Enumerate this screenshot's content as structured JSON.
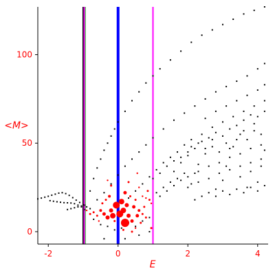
{
  "chart_data": {
    "type": "scatter",
    "xlabel": "E",
    "ylabel": "<M>",
    "xlim": [
      -2.3,
      4.3
    ],
    "ylim": [
      -7,
      127
    ],
    "x_ticks": [
      -2,
      0,
      2,
      4
    ],
    "y_ticks": [
      0,
      50,
      100
    ],
    "grid": false,
    "vlines": [
      {
        "x": -1.0,
        "color": "#000000",
        "width": 2
      },
      {
        "x": -0.97,
        "color": "#ff00ff",
        "width": 2
      },
      {
        "x": -0.94,
        "color": "#00aa00",
        "width": 1
      },
      {
        "x": 0.0,
        "color": "#0000ff",
        "width": 4
      },
      {
        "x": 1.0,
        "color": "#ff00ff",
        "width": 2
      }
    ],
    "series": [
      {
        "marker_color": "#000000",
        "points": [
          [
            -2.3,
            18.5
          ],
          [
            -2.2,
            19.0
          ],
          [
            -2.1,
            19.5
          ],
          [
            -2.0,
            20.0
          ],
          [
            -1.9,
            20.6
          ],
          [
            -1.8,
            21.2
          ],
          [
            -1.7,
            21.8
          ],
          [
            -1.6,
            22.0
          ],
          [
            -1.5,
            21.5
          ],
          [
            -1.4,
            20.5
          ],
          [
            -1.3,
            19.2
          ],
          [
            -1.2,
            17.8
          ],
          [
            -1.1,
            16.5
          ],
          [
            -1.0,
            15.2
          ],
          [
            -0.9,
            14.0
          ],
          [
            -0.8,
            13.0
          ],
          [
            -1.95,
            17.5
          ],
          [
            -1.85,
            17.2
          ],
          [
            -1.75,
            16.9
          ],
          [
            -1.65,
            16.6
          ],
          [
            -1.55,
            16.4
          ],
          [
            -1.45,
            16.3
          ],
          [
            -1.35,
            16.2
          ],
          [
            -1.25,
            15.8
          ],
          [
            -1.15,
            15.0
          ],
          [
            -1.05,
            14.0
          ],
          [
            -0.95,
            12.5
          ],
          [
            -1.45,
            12.5
          ],
          [
            -1.35,
            13.0
          ],
          [
            -1.25,
            13.5
          ],
          [
            -1.15,
            14.0
          ],
          [
            -1.05,
            14.5
          ],
          [
            -0.95,
            15.0
          ],
          [
            -0.8,
            23
          ],
          [
            -0.7,
            30
          ],
          [
            -0.6,
            36
          ],
          [
            -0.5,
            41
          ],
          [
            -0.4,
            46
          ],
          [
            -0.3,
            50
          ],
          [
            -0.2,
            54
          ],
          [
            -0.1,
            58
          ],
          [
            0.0,
            62
          ],
          [
            0.2,
            68
          ],
          [
            0.4,
            74
          ],
          [
            0.6,
            79
          ],
          [
            0.8,
            84
          ],
          [
            1.0,
            88
          ],
          [
            1.2,
            92
          ],
          [
            1.5,
            97
          ],
          [
            1.8,
            102
          ],
          [
            2.1,
            107
          ],
          [
            2.4,
            111
          ],
          [
            2.7,
            114
          ],
          [
            3.0,
            117
          ],
          [
            3.3,
            120
          ],
          [
            3.6,
            123
          ],
          [
            3.9,
            125
          ],
          [
            4.2,
            127
          ],
          [
            -0.6,
            18
          ],
          [
            -0.4,
            22
          ],
          [
            -0.2,
            27
          ],
          [
            0.0,
            32
          ],
          [
            0.2,
            37
          ],
          [
            0.4,
            41
          ],
          [
            0.6,
            45
          ],
          [
            0.8,
            49
          ],
          [
            1.0,
            53
          ],
          [
            1.3,
            58
          ],
          [
            1.6,
            63
          ],
          [
            1.9,
            67
          ],
          [
            2.2,
            71
          ],
          [
            2.5,
            75
          ],
          [
            2.8,
            79
          ],
          [
            3.1,
            82
          ],
          [
            3.4,
            85
          ],
          [
            3.7,
            88
          ],
          [
            4.0,
            92
          ],
          [
            4.2,
            95
          ],
          [
            0.3,
            19
          ],
          [
            0.5,
            23
          ],
          [
            0.7,
            27
          ],
          [
            0.9,
            31
          ],
          [
            1.1,
            35
          ],
          [
            1.3,
            39
          ],
          [
            1.5,
            42
          ],
          [
            1.7,
            45
          ],
          [
            1.9,
            49
          ],
          [
            2.1,
            52
          ],
          [
            2.4,
            55
          ],
          [
            2.7,
            59
          ],
          [
            3.0,
            62
          ],
          [
            3.3,
            65
          ],
          [
            3.6,
            68
          ],
          [
            3.9,
            71
          ],
          [
            4.2,
            74
          ],
          [
            1.2,
            20
          ],
          [
            1.4,
            23
          ],
          [
            1.6,
            26
          ],
          [
            1.8,
            29
          ],
          [
            2.0,
            31
          ],
          [
            2.3,
            34
          ],
          [
            2.6,
            37
          ],
          [
            2.9,
            39
          ],
          [
            3.2,
            42
          ],
          [
            3.5,
            44
          ],
          [
            3.8,
            47
          ],
          [
            4.1,
            49
          ],
          [
            2.0,
            25
          ],
          [
            2.3,
            28
          ],
          [
            2.6,
            30
          ],
          [
            2.9,
            33
          ],
          [
            3.2,
            35
          ],
          [
            3.5,
            37
          ],
          [
            3.8,
            39
          ],
          [
            4.1,
            41
          ],
          [
            1.1,
            22
          ],
          [
            1.3,
            25
          ],
          [
            1.5,
            28
          ],
          [
            1.7,
            30
          ],
          [
            1.9,
            33
          ],
          [
            2.1,
            27
          ],
          [
            2.2,
            33
          ],
          [
            2.3,
            38
          ],
          [
            2.5,
            44
          ],
          [
            2.7,
            48
          ],
          [
            2.8,
            24
          ],
          [
            3.0,
            29
          ],
          [
            3.1,
            37
          ],
          [
            3.2,
            47
          ],
          [
            3.4,
            52
          ],
          [
            3.5,
            31
          ],
          [
            3.6,
            57
          ],
          [
            3.7,
            25
          ],
          [
            3.8,
            34
          ],
          [
            3.9,
            61
          ],
          [
            4.0,
            28
          ],
          [
            4.1,
            37
          ],
          [
            4.2,
            46
          ],
          [
            1.6,
            34
          ],
          [
            1.8,
            39
          ],
          [
            2.0,
            43
          ],
          [
            2.2,
            47
          ],
          [
            2.4,
            51
          ],
          [
            2.6,
            53
          ],
          [
            2.8,
            56
          ],
          [
            3.0,
            54
          ],
          [
            3.2,
            58
          ],
          [
            3.4,
            60
          ],
          [
            3.6,
            63
          ],
          [
            3.8,
            66
          ],
          [
            4.0,
            65
          ],
          [
            4.2,
            68
          ],
          [
            2.2,
            18
          ],
          [
            2.4,
            20
          ],
          [
            2.6,
            22
          ],
          [
            2.8,
            20
          ],
          [
            3.0,
            23
          ],
          [
            3.2,
            21
          ],
          [
            3.4,
            24
          ],
          [
            3.6,
            22
          ],
          [
            3.8,
            25
          ],
          [
            4.0,
            23
          ],
          [
            4.2,
            26
          ],
          [
            1.0,
            30
          ],
          [
            1.2,
            33
          ],
          [
            1.4,
            37
          ],
          [
            1.6,
            40
          ],
          [
            1.8,
            42
          ],
          [
            2.0,
            45
          ],
          [
            2.1,
            48
          ],
          [
            2.3,
            50
          ],
          [
            2.5,
            47
          ],
          [
            2.7,
            52
          ],
          [
            2.9,
            45
          ],
          [
            3.1,
            50
          ],
          [
            3.3,
            48
          ],
          [
            3.5,
            55
          ],
          [
            3.7,
            52
          ],
          [
            3.9,
            57
          ],
          [
            4.1,
            55
          ],
          [
            2.5,
            64
          ],
          [
            2.8,
            68
          ],
          [
            3.1,
            71
          ],
          [
            3.4,
            74
          ],
          [
            3.7,
            77
          ],
          [
            4.0,
            80
          ],
          [
            4.2,
            83
          ],
          [
            -0.5,
            4
          ],
          [
            -0.3,
            3
          ],
          [
            -0.1,
            1
          ],
          [
            0.1,
            2
          ],
          [
            0.3,
            5
          ],
          [
            0.5,
            3
          ],
          [
            0.7,
            6
          ],
          [
            0.9,
            8
          ],
          [
            -0.4,
            -4
          ],
          [
            0.2,
            -4
          ],
          [
            0.6,
            -2
          ],
          [
            0.9,
            0
          ],
          [
            -0.7,
            7
          ],
          [
            -0.2,
            9
          ]
        ]
      },
      {
        "marker_color": "#ff0000",
        "points": [
          [
            -0.05,
            15,
            5
          ],
          [
            0.15,
            12,
            4
          ],
          [
            0.2,
            5,
            6
          ],
          [
            -0.15,
            9,
            4
          ],
          [
            0.05,
            10,
            5
          ],
          [
            0.1,
            17,
            4
          ],
          [
            -0.3,
            8,
            3
          ],
          [
            0.3,
            9,
            3
          ],
          [
            -0.2,
            12,
            3
          ],
          [
            0.25,
            15,
            3
          ],
          [
            0.45,
            14,
            2.5
          ],
          [
            0.55,
            9,
            2.5
          ],
          [
            -0.4,
            10,
            2.5
          ],
          [
            -0.5,
            12,
            2
          ],
          [
            0.6,
            12,
            2
          ],
          [
            0.4,
            6,
            2.5
          ],
          [
            -0.6,
            9,
            1.5
          ],
          [
            -0.7,
            11,
            1.5
          ],
          [
            -0.8,
            10,
            1.5
          ],
          [
            -0.9,
            12,
            1.2
          ],
          [
            0.7,
            10,
            1.5
          ],
          [
            0.8,
            8,
            1.5
          ],
          [
            0.65,
            5,
            1.5
          ],
          [
            0.75,
            14,
            1.5
          ],
          [
            -0.25,
            20,
            2
          ],
          [
            0.2,
            22,
            2.5
          ],
          [
            -0.35,
            18,
            1.5
          ],
          [
            0.35,
            20,
            1.5
          ],
          [
            0.5,
            18,
            1.5
          ],
          [
            -0.45,
            16,
            1.5
          ],
          [
            0.85,
            23,
            1.5
          ],
          [
            0.9,
            18,
            1.5
          ],
          [
            -0.2,
            26,
            1.5
          ],
          [
            0.3,
            28,
            1.5
          ],
          [
            -0.3,
            29,
            1.2
          ],
          [
            0.55,
            33,
            1.2
          ],
          [
            0.6,
            25,
            1.2
          ],
          [
            0.8,
            19,
            1.2
          ],
          [
            0.95,
            16,
            1.2
          ],
          [
            0.4,
            0,
            1.5
          ],
          [
            0.15,
            1,
            1.5
          ],
          [
            0.95,
            2,
            1.5
          ],
          [
            -0.1,
            6,
            1.5
          ],
          [
            0.5,
            2,
            1.2
          ],
          [
            -0.55,
            6,
            1.2
          ],
          [
            0.7,
            20,
            1.2
          ]
        ]
      }
    ]
  }
}
